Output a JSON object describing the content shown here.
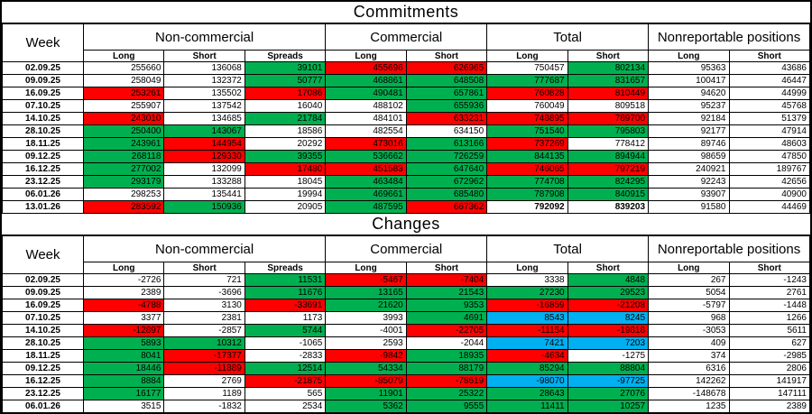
{
  "colors": {
    "positive_fill": "#00B050",
    "negative_fill": "#FF0000",
    "neutral_fill": "#00B0F0"
  },
  "sections": [
    {
      "title": "Commitments",
      "week_header": "Week",
      "groups": [
        {
          "label": "Non-commercial",
          "cols": [
            "Long",
            "Short",
            "Spreads"
          ]
        },
        {
          "label": "Commercial",
          "cols": [
            "Long",
            "Short"
          ]
        },
        {
          "label": "Total",
          "cols": [
            "Long",
            "Short"
          ]
        },
        {
          "label": "Nonreportable positions",
          "cols": [
            "Long",
            "Short"
          ]
        }
      ],
      "rows": [
        {
          "week": "02.09.25",
          "values": [
            "255660",
            "136068",
            "39101",
            "455696",
            "626965",
            "750457",
            "802134",
            "95363",
            "43686"
          ],
          "colors": [
            "w",
            "w",
            "g",
            "r",
            "r",
            "w",
            "g",
            "w",
            "w"
          ]
        },
        {
          "week": "09.09.25",
          "values": [
            "258049",
            "132372",
            "50777",
            "468861",
            "648508",
            "777687",
            "831657",
            "100417",
            "46447"
          ],
          "colors": [
            "w",
            "w",
            "g",
            "g",
            "g",
            "g",
            "g",
            "w",
            "w"
          ]
        },
        {
          "week": "16.09.25",
          "values": [
            "253261",
            "135502",
            "17086",
            "490481",
            "657861",
            "760828",
            "810449",
            "94620",
            "44999"
          ],
          "colors": [
            "r",
            "w",
            "r",
            "g",
            "g",
            "r",
            "r",
            "w",
            "w"
          ]
        },
        {
          "week": "07.10.25",
          "values": [
            "255907",
            "137542",
            "16040",
            "488102",
            "655936",
            "760049",
            "809518",
            "95237",
            "45768"
          ],
          "colors": [
            "w",
            "w",
            "w",
            "w",
            "g",
            "w",
            "w",
            "w",
            "w"
          ]
        },
        {
          "week": "14.10.25",
          "values": [
            "243010",
            "134685",
            "21784",
            "484101",
            "633231",
            "748895",
            "789700",
            "92184",
            "51379"
          ],
          "colors": [
            "r",
            "w",
            "g",
            "w",
            "r",
            "r",
            "r",
            "w",
            "w"
          ]
        },
        {
          "week": "28.10.25",
          "values": [
            "250400",
            "143067",
            "18586",
            "482554",
            "634150",
            "751540",
            "795803",
            "92177",
            "47914"
          ],
          "colors": [
            "g",
            "g",
            "w",
            "w",
            "w",
            "g",
            "g",
            "w",
            "w"
          ]
        },
        {
          "week": "18.11.25",
          "values": [
            "243961",
            "144954",
            "20292",
            "473016",
            "613166",
            "737269",
            "778412",
            "89746",
            "48603"
          ],
          "colors": [
            "g",
            "r",
            "w",
            "r",
            "g",
            "r",
            "w",
            "w",
            "w"
          ]
        },
        {
          "week": "09.12.25",
          "values": [
            "268118",
            "129330",
            "39355",
            "536662",
            "726259",
            "844135",
            "894944",
            "98659",
            "47850"
          ],
          "colors": [
            "g",
            "r",
            "g",
            "g",
            "g",
            "g",
            "g",
            "w",
            "w"
          ]
        },
        {
          "week": "16.12.25",
          "values": [
            "277002",
            "132099",
            "17480",
            "451583",
            "647640",
            "746065",
            "797219",
            "240921",
            "189767"
          ],
          "colors": [
            "g",
            "w",
            "r",
            "r",
            "g",
            "r",
            "r",
            "w",
            "w"
          ]
        },
        {
          "week": "23.12.25",
          "values": [
            "293179",
            "133288",
            "18045",
            "463484",
            "672962",
            "774708",
            "824295",
            "92243",
            "42656"
          ],
          "colors": [
            "g",
            "w",
            "w",
            "g",
            "g",
            "g",
            "g",
            "w",
            "w"
          ]
        },
        {
          "week": "06.01.26",
          "values": [
            "298253",
            "135441",
            "19994",
            "469661",
            "685480",
            "787908",
            "840915",
            "93907",
            "40900"
          ],
          "colors": [
            "w",
            "w",
            "w",
            "g",
            "g",
            "g",
            "g",
            "w",
            "w"
          ]
        },
        {
          "week": "13.01.26",
          "values": [
            "283592",
            "150936",
            "20905",
            "487595",
            "667362",
            "792092",
            "839203",
            "91580",
            "44469"
          ],
          "colors": [
            "r",
            "g",
            "w",
            "g",
            "r",
            "w",
            "w",
            "w",
            "w"
          ],
          "bold": [
            5,
            6
          ]
        }
      ]
    },
    {
      "title": "Changes",
      "week_header": "Week",
      "groups": [
        {
          "label": "Non-commercial",
          "cols": [
            "Long",
            "Short",
            "Spreads"
          ]
        },
        {
          "label": "Commercial",
          "cols": [
            "Long",
            "Short"
          ]
        },
        {
          "label": "Total",
          "cols": [
            "Long",
            "Short"
          ]
        },
        {
          "label": "Nonreportable positions",
          "cols": [
            "Long",
            "Short"
          ]
        }
      ],
      "rows": [
        {
          "week": "02.09.25",
          "values": [
            "-2726",
            "721",
            "11531",
            "-5467",
            "-7404",
            "3338",
            "4848",
            "267",
            "-1243"
          ],
          "colors": [
            "w",
            "w",
            "g",
            "r",
            "r",
            "w",
            "g",
            "w",
            "w"
          ]
        },
        {
          "week": "09.09.25",
          "values": [
            "2389",
            "-3696",
            "11676",
            "13165",
            "21543",
            "27230",
            "29523",
            "5054",
            "2761"
          ],
          "colors": [
            "w",
            "w",
            "g",
            "g",
            "g",
            "g",
            "g",
            "w",
            "w"
          ]
        },
        {
          "week": "16.09.25",
          "values": [
            "-4788",
            "3130",
            "-33691",
            "21620",
            "9353",
            "-16859",
            "-21208",
            "-5797",
            "-1448"
          ],
          "colors": [
            "r",
            "w",
            "r",
            "g",
            "g",
            "r",
            "r",
            "w",
            "w"
          ]
        },
        {
          "week": "07.10.25",
          "values": [
            "3377",
            "2381",
            "1173",
            "3993",
            "4691",
            "8543",
            "8245",
            "968",
            "1266"
          ],
          "colors": [
            "w",
            "w",
            "w",
            "w",
            "g",
            "b",
            "b",
            "w",
            "w"
          ]
        },
        {
          "week": "14.10.25",
          "values": [
            "-12897",
            "-2857",
            "5744",
            "-4001",
            "-22705",
            "-11154",
            "-19818",
            "-3053",
            "5611"
          ],
          "colors": [
            "r",
            "w",
            "g",
            "w",
            "r",
            "r",
            "r",
            "w",
            "w"
          ]
        },
        {
          "week": "28.10.25",
          "values": [
            "5893",
            "10312",
            "-1065",
            "2593",
            "-2044",
            "7421",
            "7203",
            "409",
            "627"
          ],
          "colors": [
            "g",
            "g",
            "w",
            "w",
            "w",
            "b",
            "b",
            "w",
            "w"
          ]
        },
        {
          "week": "18.11.25",
          "values": [
            "8041",
            "-17377",
            "-2833",
            "-9842",
            "18935",
            "-4634",
            "-1275",
            "374",
            "-2985"
          ],
          "colors": [
            "g",
            "r",
            "w",
            "r",
            "g",
            "r",
            "w",
            "w",
            "w"
          ]
        },
        {
          "week": "09.12.25",
          "values": [
            "18446",
            "-11889",
            "12514",
            "54334",
            "88179",
            "85294",
            "88804",
            "6316",
            "2806"
          ],
          "colors": [
            "g",
            "r",
            "g",
            "g",
            "g",
            "g",
            "g",
            "w",
            "w"
          ]
        },
        {
          "week": "16.12.25",
          "values": [
            "8884",
            "2769",
            "-21875",
            "-85079",
            "-78619",
            "-98070",
            "-97725",
            "142262",
            "141917"
          ],
          "colors": [
            "g",
            "w",
            "r",
            "r",
            "r",
            "b",
            "b",
            "w",
            "w"
          ]
        },
        {
          "week": "23.12.25",
          "values": [
            "16177",
            "1189",
            "565",
            "11901",
            "25322",
            "28643",
            "27076",
            "-148678",
            "147111"
          ],
          "colors": [
            "g",
            "w",
            "w",
            "g",
            "g",
            "g",
            "g",
            "w",
            "w"
          ]
        },
        {
          "week": "06.01.26",
          "values": [
            "3515",
            "-1832",
            "2534",
            "5362",
            "9555",
            "11411",
            "10257",
            "1235",
            "2389"
          ],
          "colors": [
            "w",
            "w",
            "w",
            "g",
            "g",
            "g",
            "g",
            "w",
            "w"
          ]
        },
        {
          "week": "13.01.26",
          "values": [
            "-14661",
            "15495",
            "911",
            "17934",
            "-18118",
            "4184",
            "-1712",
            "-2327",
            "3569"
          ],
          "colors": [
            "r",
            "g",
            "w",
            "g",
            "r",
            "w",
            "w",
            "w",
            "w"
          ],
          "bold": [
            5,
            6
          ]
        }
      ]
    }
  ]
}
